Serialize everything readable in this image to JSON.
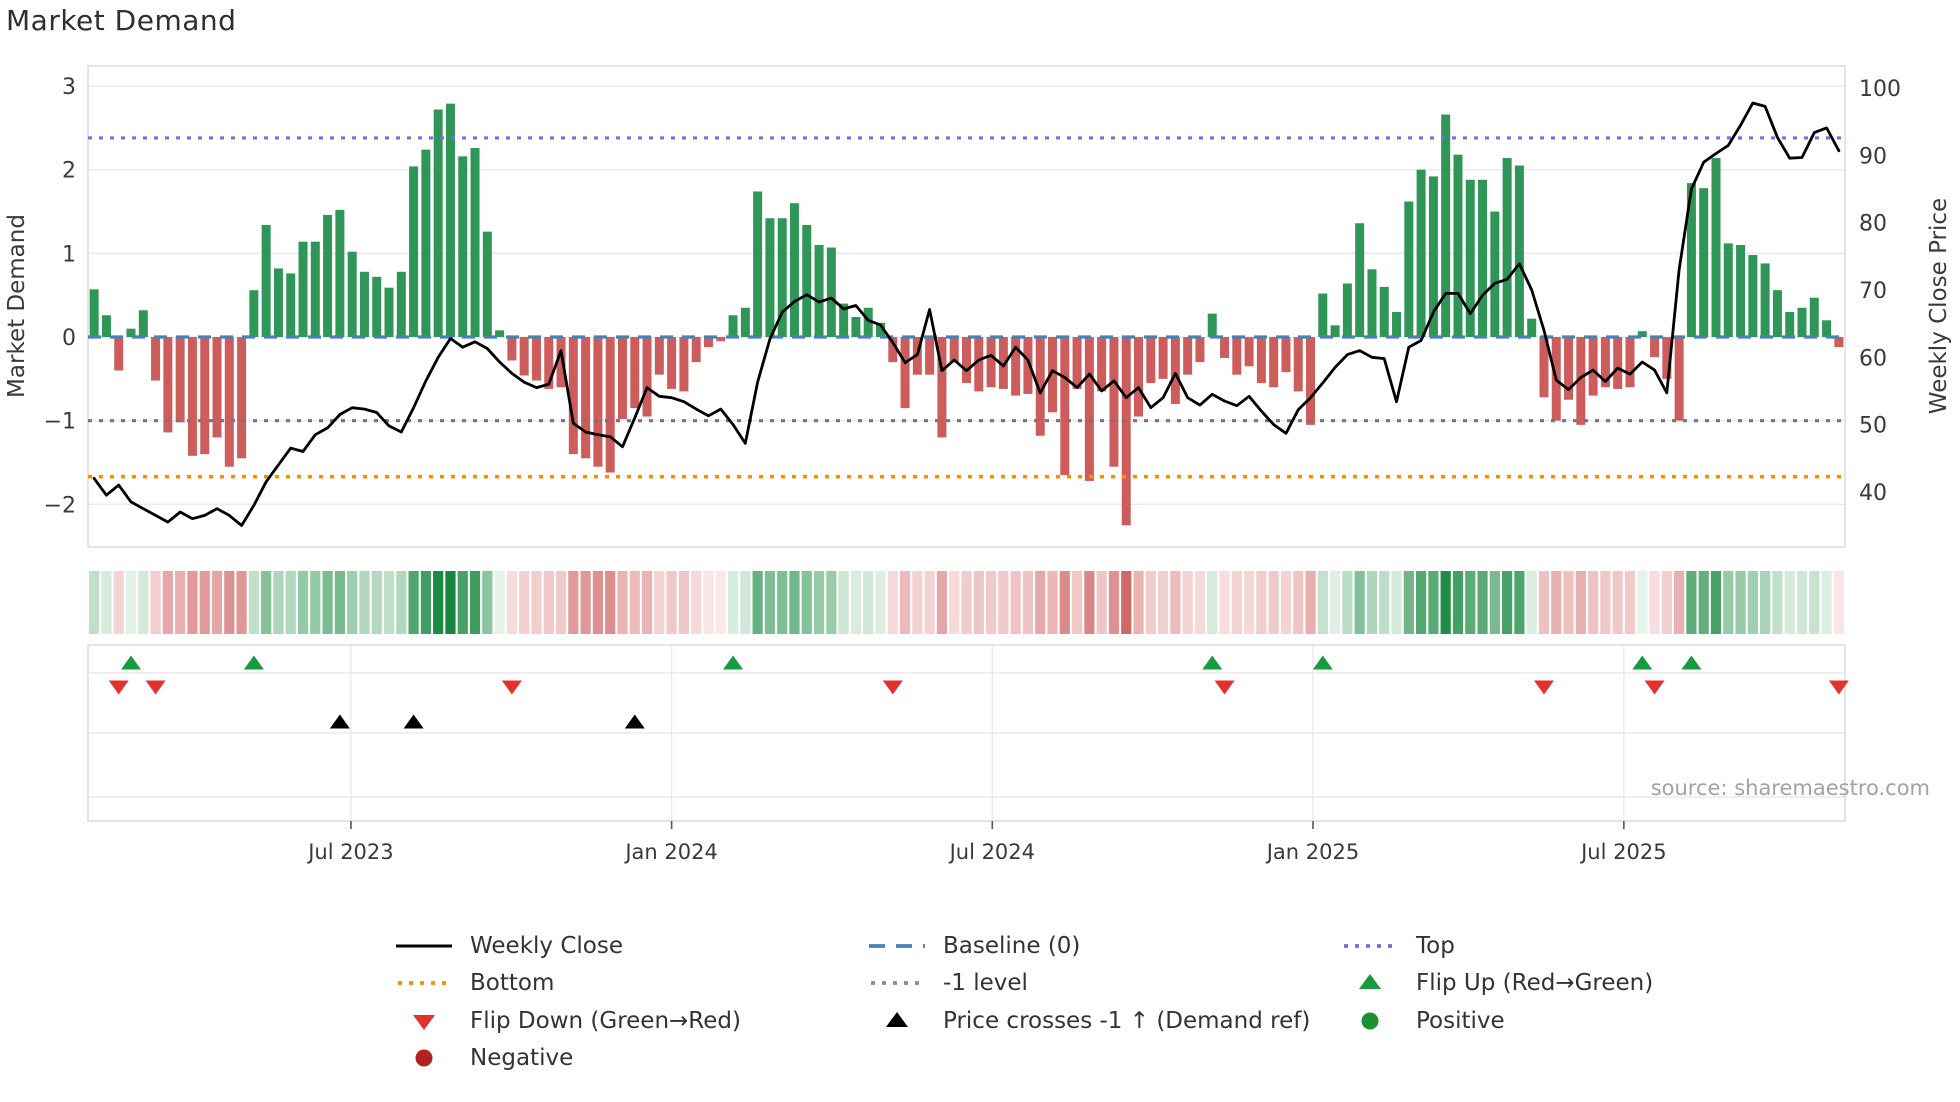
{
  "title": "Market Demand",
  "y_left_label": "Market Demand",
  "y_right_label": "Weekly Close Price",
  "source": "source: sharemaestro.com",
  "colors": {
    "bar_positive": "#2f9658",
    "bar_negative": "#cd5c5c",
    "price_line": "#000000",
    "baseline": "#4682b4",
    "top_line": "#7b68ee",
    "bottom_line": "#ff8c00",
    "minus_one_line": "#767676",
    "flip_up_marker": "#169c3e",
    "flip_down_marker": "#e53030",
    "price_cross_marker": "#000000",
    "grid": "#e9e9ef",
    "spine": "#d8d8dd"
  },
  "chart_data": {
    "type": "bar",
    "title": "Market Demand",
    "xlabel": "",
    "ylabel_left": "Market Demand",
    "ylabel_right": "Weekly Close Price",
    "x_tick_labels": [
      "Jul 2023",
      "Jan 2024",
      "Jul 2024",
      "Jan 2025",
      "Jul 2025"
    ],
    "x_tick_weeks": [
      21.4,
      47.5,
      73.6,
      99.7,
      125.0
    ],
    "y_left_ticks": [
      3,
      2,
      1,
      0,
      -1,
      -2
    ],
    "y_right_ticks": [
      100,
      90,
      80,
      70,
      60,
      50,
      40
    ],
    "y_left_range": [
      -2.51,
      3.24
    ],
    "y_right_range": [
      31.8,
      103.3
    ],
    "reference_lines": {
      "top": 2.38,
      "baseline": 0,
      "minus_one_level": -1,
      "bottom": -1.67
    },
    "series": [
      {
        "name": "Market Demand (weekly bars)",
        "values": [
          0.57,
          0.26,
          -0.4,
          0.1,
          0.32,
          -0.52,
          -1.14,
          -1.02,
          -1.42,
          -1.4,
          -1.2,
          -1.55,
          -1.45,
          0.56,
          1.34,
          0.82,
          0.76,
          1.14,
          1.14,
          1.46,
          1.52,
          1.02,
          0.78,
          0.72,
          0.59,
          0.78,
          2.04,
          2.24,
          2.72,
          2.79,
          2.16,
          2.26,
          1.26,
          0.08,
          -0.28,
          -0.46,
          -0.52,
          -0.62,
          -0.6,
          -1.4,
          -1.45,
          -1.55,
          -1.62,
          -0.98,
          -0.85,
          -0.95,
          -0.45,
          -0.62,
          -0.65,
          -0.3,
          -0.12,
          -0.05,
          0.26,
          0.35,
          1.74,
          1.42,
          1.42,
          1.6,
          1.34,
          1.1,
          1.07,
          0.4,
          0.24,
          0.35,
          0.17,
          -0.3,
          -0.85,
          -0.45,
          -0.45,
          -1.2,
          -0.3,
          -0.55,
          -0.65,
          -0.6,
          -0.62,
          -0.7,
          -0.68,
          -1.18,
          -0.9,
          -1.65,
          -0.62,
          -1.72,
          -0.65,
          -1.55,
          -2.25,
          -0.95,
          -0.55,
          -0.5,
          -0.8,
          -0.45,
          -0.3,
          0.28,
          -0.25,
          -0.45,
          -0.35,
          -0.55,
          -0.6,
          -0.42,
          -0.65,
          -1.05,
          0.52,
          0.14,
          0.64,
          1.36,
          0.81,
          0.6,
          0.3,
          1.62,
          2.0,
          1.92,
          2.66,
          2.18,
          1.88,
          1.88,
          1.5,
          2.14,
          2.05,
          0.22,
          -0.72,
          -1.0,
          -0.75,
          -1.05,
          -0.7,
          -0.6,
          -0.62,
          -0.6,
          0.07,
          -0.24,
          -0.5,
          -1.0,
          1.84,
          1.78,
          2.14,
          1.12,
          1.1,
          0.98,
          0.88,
          0.56,
          0.3,
          0.35,
          0.47,
          0.2,
          -0.12
        ]
      },
      {
        "name": "Weekly Close",
        "values": [
          42.0,
          39.5,
          41.0,
          38.5,
          37.5,
          36.5,
          35.5,
          37.0,
          36.0,
          36.5,
          37.5,
          36.5,
          35.0,
          38.0,
          41.5,
          44.0,
          46.5,
          46.0,
          48.5,
          49.5,
          51.5,
          52.5,
          52.3,
          51.8,
          49.8,
          48.9,
          52.5,
          56.5,
          60.0,
          62.8,
          61.5,
          62.3,
          61.3,
          59.3,
          57.6,
          56.3,
          55.5,
          56.0,
          61.0,
          50.2,
          48.9,
          48.5,
          48.2,
          46.7,
          51.0,
          55.5,
          54.2,
          54.0,
          53.4,
          52.3,
          51.3,
          52.3,
          50.0,
          47.2,
          56.3,
          62.7,
          66.7,
          68.3,
          69.3,
          68.2,
          68.8,
          67.2,
          67.7,
          65.5,
          64.8,
          62.2,
          59.2,
          60.4,
          67.1,
          58.0,
          59.6,
          58.0,
          59.6,
          60.3,
          58.7,
          61.5,
          59.6,
          54.7,
          58.0,
          57.0,
          55.5,
          57.5,
          55.0,
          56.5,
          54.0,
          55.5,
          52.5,
          54.0,
          57.6,
          54.0,
          52.9,
          54.5,
          53.5,
          52.8,
          54.2,
          52.0,
          50.0,
          48.7,
          52.2,
          54.0,
          56.2,
          58.5,
          60.4,
          61.0,
          60.0,
          59.8,
          53.4,
          61.5,
          62.5,
          66.7,
          69.5,
          69.5,
          66.5,
          69.2,
          71.0,
          71.6,
          73.9,
          70.0,
          64.0,
          56.6,
          55.2,
          57.0,
          58.1,
          56.4,
          58.4,
          57.5,
          59.3,
          58.1,
          54.7,
          73.0,
          85.0,
          89.0,
          90.3,
          91.5,
          94.5,
          97.8,
          97.3,
          92.7,
          89.6,
          89.7,
          93.4,
          94.1,
          90.7
        ]
      }
    ],
    "markers": {
      "flip_up_weeks": [
        3,
        13,
        52,
        91,
        100,
        126,
        130
      ],
      "flip_down_weeks": [
        2,
        5,
        34,
        65,
        92,
        118,
        127,
        142
      ],
      "price_cross_up_weeks": [
        20,
        26,
        44
      ]
    },
    "heatmap": {
      "description": "strip of weekly cells colored by Market Demand value (green positive, red negative)",
      "scale_abs_max": 2.8
    },
    "legend_position": "bottom",
    "grid": "horizontal"
  },
  "legend": [
    {
      "label": "Weekly Close",
      "swatch": "line",
      "color": "#000000"
    },
    {
      "label": "Bottom",
      "swatch": "dotted",
      "color": "#ff8c00"
    },
    {
      "label": "Flip Down (Green→Red)",
      "swatch": "triangle-down",
      "color": "#e53030"
    },
    {
      "label": "Negative",
      "swatch": "circle",
      "color": "#b22222"
    },
    {
      "label": "Baseline (0)",
      "swatch": "dashed",
      "color": "#4682b4"
    },
    {
      "label": "-1 level",
      "swatch": "dotted",
      "color": "#8a8a8a"
    },
    {
      "label": "Price crosses -1 ↑ (Demand ref)",
      "swatch": "triangle-up",
      "color": "#000000"
    },
    {
      "label": "Top",
      "swatch": "dotted",
      "color": "#7b68ee"
    },
    {
      "label": "Flip Up (Red→Green)",
      "swatch": "triangle-up",
      "color": "#169c3e"
    },
    {
      "label": "Positive",
      "swatch": "circle",
      "color": "#1f9032"
    }
  ],
  "legend_columns": [
    [
      0,
      1,
      2,
      3
    ],
    [
      4,
      5,
      6
    ],
    [
      7,
      8,
      9
    ]
  ]
}
